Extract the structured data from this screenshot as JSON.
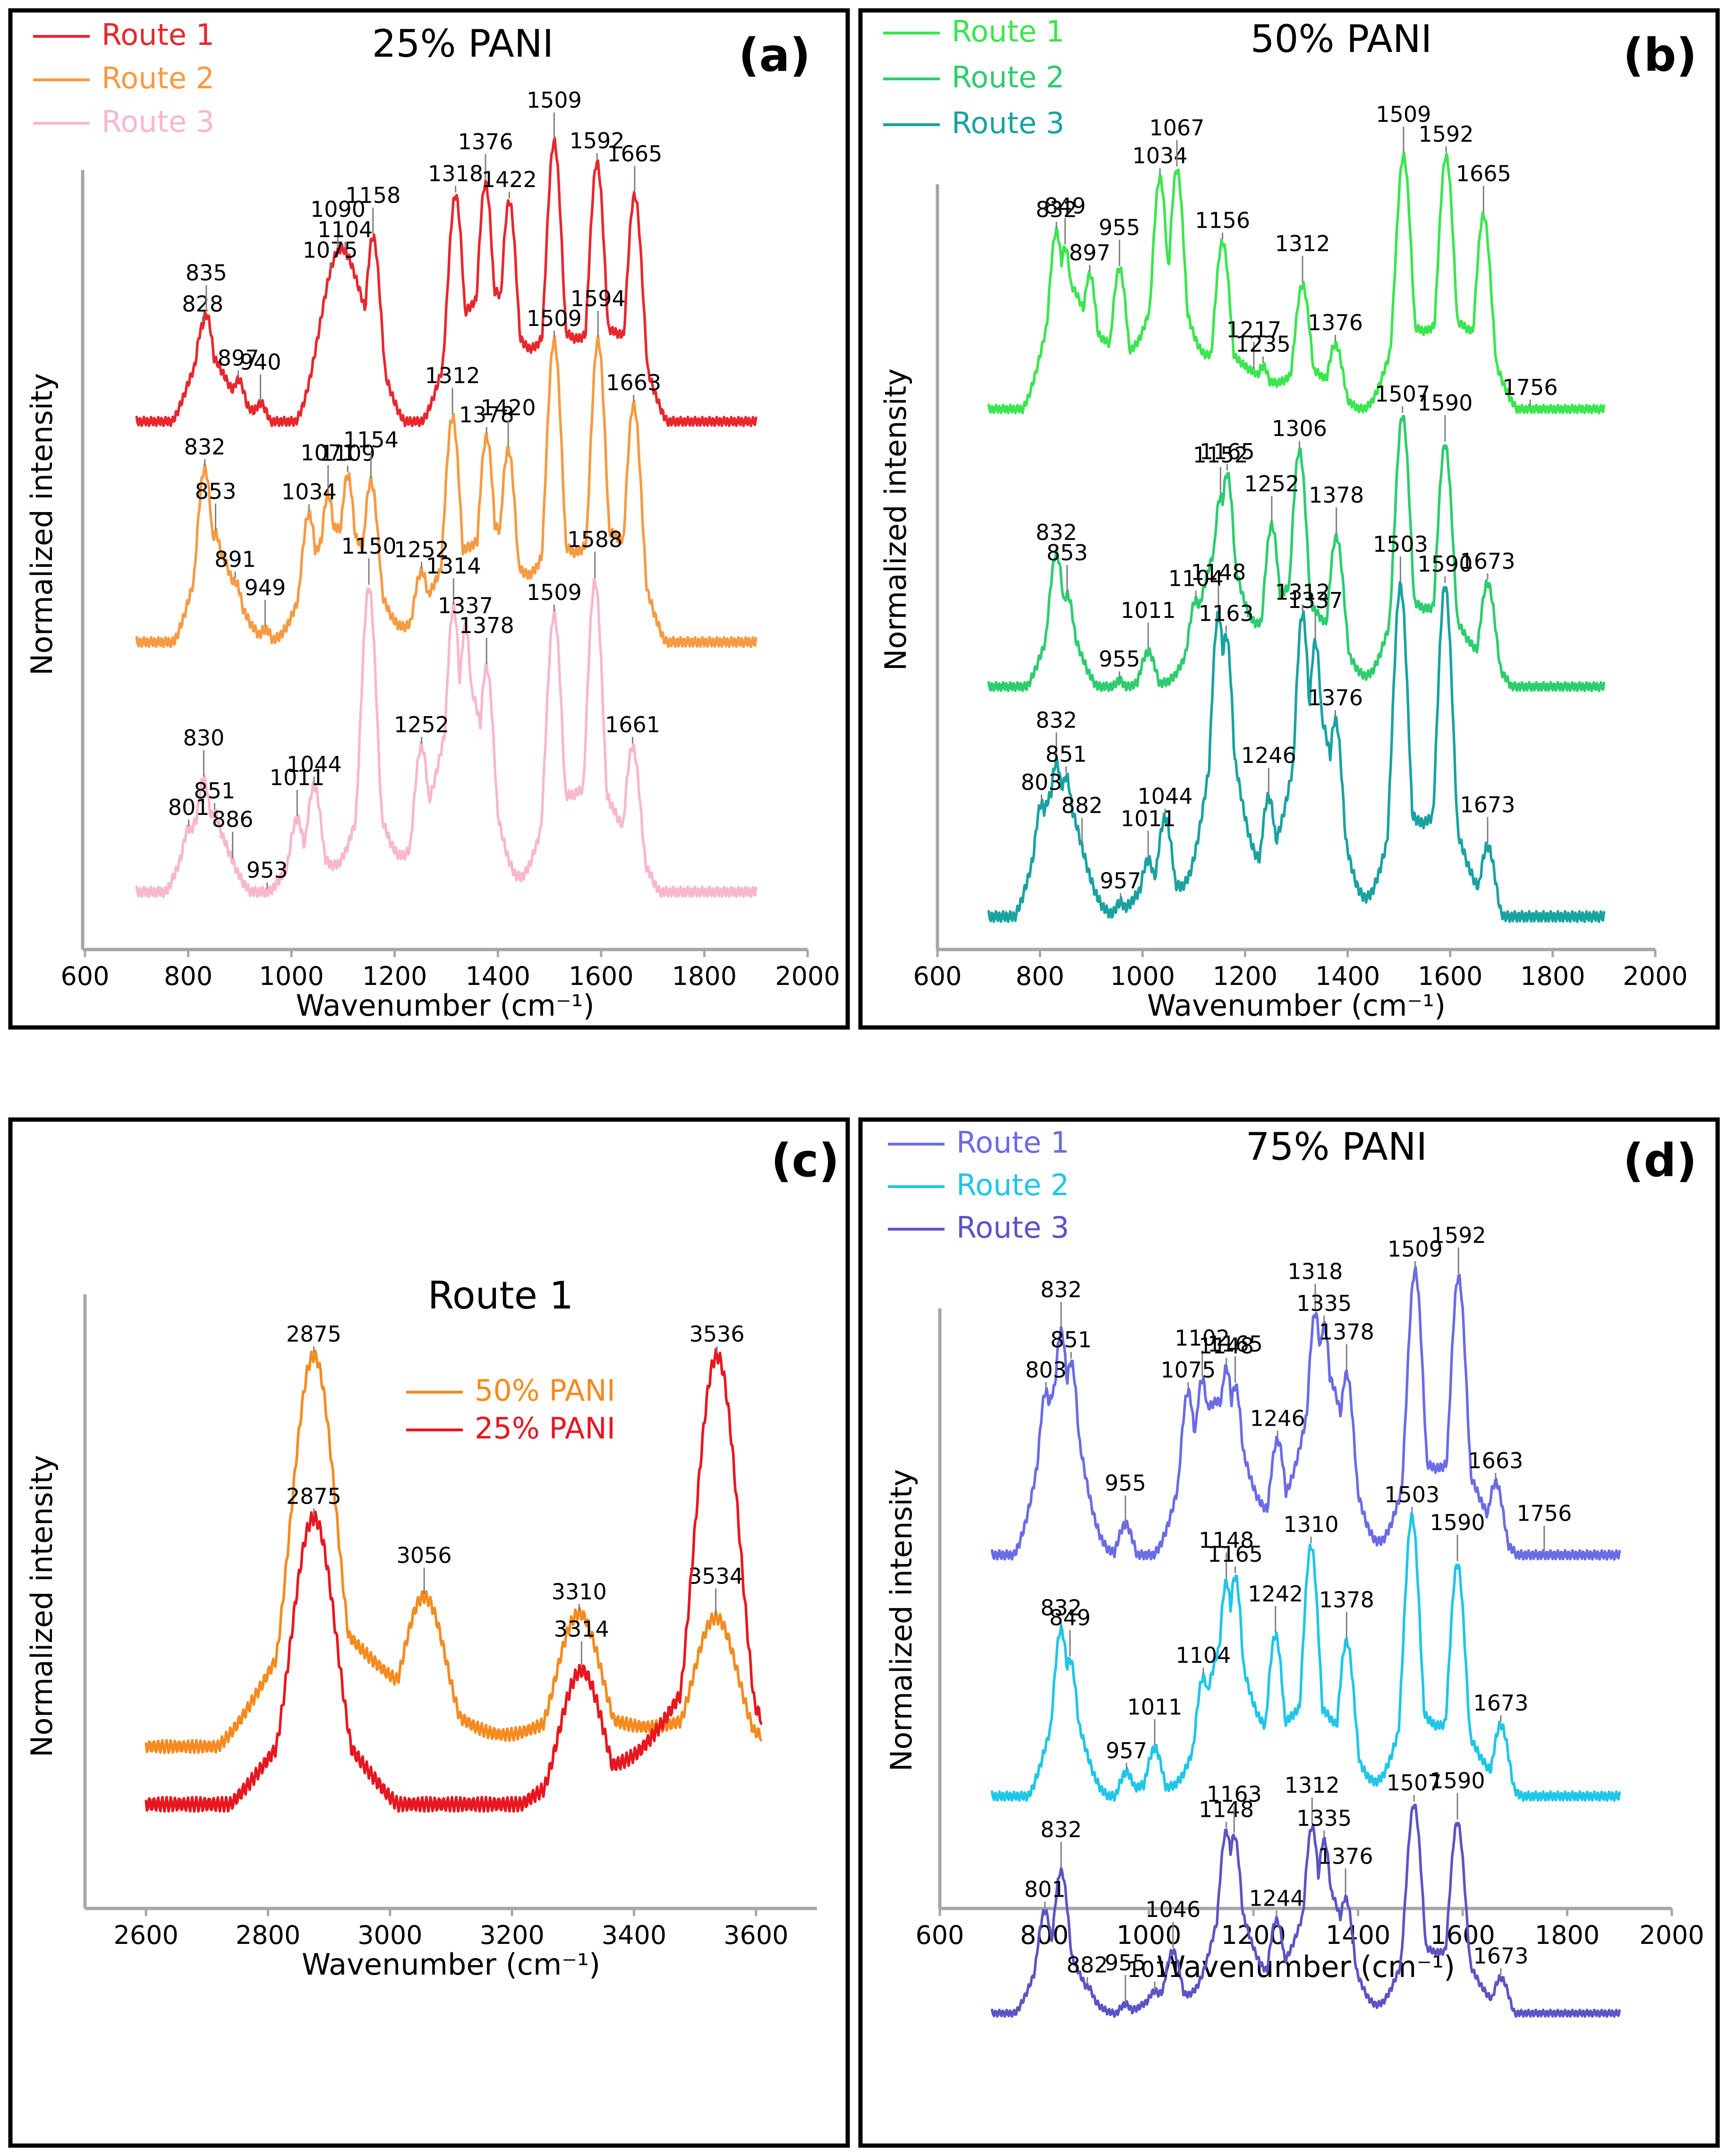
{
  "chart_data": [
    {
      "panel": "a",
      "type": "line",
      "title": "25% PANI",
      "xlabel": "Wavenumber (cm⁻¹)",
      "ylabel": "Normalized intensity",
      "xlim": [
        600,
        2000
      ],
      "xticks": [
        "600",
        "800",
        "1000",
        "1200",
        "1400",
        "1600",
        "1800",
        "2000"
      ],
      "legend_position": "top-left",
      "series": [
        {
          "name": "Route 1",
          "color": "#e8272d",
          "offset": 0.66,
          "scale": 0.28,
          "peaks": [
            [
              828,
              0.38
            ],
            [
              835,
              0.42
            ],
            [
              897,
              0.2
            ],
            [
              940,
              0.12
            ],
            [
              1075,
              0.55
            ],
            [
              1090,
              0.62
            ],
            [
              1104,
              0.63
            ],
            [
              1158,
              0.68
            ],
            [
              1318,
              0.82
            ],
            [
              1376,
              0.86
            ],
            [
              1422,
              0.8
            ],
            [
              1509,
              1.0
            ],
            [
              1592,
              0.93
            ],
            [
              1665,
              0.82
            ]
          ],
          "labels": [
            "828",
            "835",
            "897",
            "940",
            "1075",
            "1090",
            "1104",
            "1158",
            "1318",
            "1376",
            "1422",
            "1509",
            "1592",
            "1665"
          ]
        },
        {
          "name": "Route 2",
          "color": "#f79a42",
          "offset": 0.34,
          "scale": 0.3,
          "peaks": [
            [
              832,
              0.6
            ],
            [
              853,
              0.4
            ],
            [
              891,
              0.25
            ],
            [
              949,
              0.1
            ],
            [
              1034,
              0.46
            ],
            [
              1071,
              0.52
            ],
            [
              1109,
              0.58
            ],
            [
              1154,
              0.56
            ],
            [
              1252,
              0.28
            ],
            [
              1312,
              0.76
            ],
            [
              1378,
              0.7
            ],
            [
              1420,
              0.66
            ],
            [
              1509,
              1.0
            ],
            [
              1594,
              1.0
            ],
            [
              1663,
              0.8
            ]
          ],
          "labels": [
            "832",
            "853",
            "891",
            "949",
            "1034",
            "1071",
            "1109",
            "1154",
            "1252",
            "1312",
            "1378",
            "1420",
            "1509",
            "1594",
            "1663"
          ]
        },
        {
          "name": "Route 3",
          "color": "#f8b7cf",
          "offset": 0.02,
          "scale": 0.46,
          "peaks": [
            [
              801,
              0.25
            ],
            [
              830,
              0.4
            ],
            [
              851,
              0.3
            ],
            [
              886,
              0.12
            ],
            [
              953,
              0.05
            ],
            [
              1011,
              0.28
            ],
            [
              1044,
              0.38
            ],
            [
              1150,
              0.98
            ],
            [
              1252,
              0.5
            ],
            [
              1314,
              0.92
            ],
            [
              1337,
              0.86
            ],
            [
              1378,
              0.74
            ],
            [
              1509,
              0.9
            ],
            [
              1588,
              1.0
            ],
            [
              1661,
              0.5
            ]
          ],
          "labels": [
            "801",
            "830",
            "851",
            "886",
            "953",
            "1011",
            "1044",
            "1150",
            "1252",
            "1314",
            "1337",
            "1378",
            "1509",
            "1588",
            "1661"
          ]
        }
      ]
    },
    {
      "panel": "b",
      "type": "line",
      "title": "50% PANI",
      "xlabel": "Wavenumber (cm⁻¹)",
      "ylabel": "Normalized intensity",
      "xlim": [
        600,
        2000
      ],
      "xticks": [
        "600",
        "800",
        "1000",
        "1200",
        "1400",
        "1600",
        "1800",
        "2000"
      ],
      "legend_position": "top-left",
      "series": [
        {
          "name": "Route 1",
          "color": "#3ae64e",
          "offset": 0.66,
          "scale": 0.3,
          "peaks": [
            [
              832,
              0.72
            ],
            [
              849,
              0.66
            ],
            [
              897,
              0.56
            ],
            [
              955,
              0.58
            ],
            [
              1034,
              0.92
            ],
            [
              1067,
              0.95
            ],
            [
              1156,
              0.68
            ],
            [
              1217,
              0.2
            ],
            [
              1235,
              0.22
            ],
            [
              1312,
              0.52
            ],
            [
              1376,
              0.3
            ],
            [
              1509,
              1.0
            ],
            [
              1592,
              1.0
            ],
            [
              1665,
              0.78
            ],
            [
              1756,
              0.04
            ]
          ],
          "labels": [
            "832",
            "849",
            "897",
            "955",
            "1034",
            "1067",
            "1156",
            "1217",
            "1235",
            "1312",
            "1376",
            "1509",
            "1592",
            "1665",
            "1756"
          ]
        },
        {
          "name": "Route 2",
          "color": "#2dcd6e",
          "offset": 0.34,
          "scale": 0.3,
          "peaks": [
            [
              832,
              0.52
            ],
            [
              853,
              0.38
            ],
            [
              955,
              0.08
            ],
            [
              1011,
              0.18
            ],
            [
              1104,
              0.36
            ],
            [
              1152,
              0.72
            ],
            [
              1165,
              0.8
            ],
            [
              1252,
              0.62
            ],
            [
              1306,
              0.88
            ],
            [
              1378,
              0.58
            ],
            [
              1507,
              1.0
            ],
            [
              1590,
              0.9
            ],
            [
              1673,
              0.42
            ]
          ],
          "labels": [
            "832",
            "853",
            "955",
            "1011",
            "1104",
            "1152",
            "1165",
            "1252",
            "1306",
            "1378",
            "1507",
            "1590",
            "1673"
          ]
        },
        {
          "name": "Route 3",
          "color": "#19a3a0",
          "offset": 0.02,
          "scale": 0.3,
          "peaks": [
            [
              803,
              0.38
            ],
            [
              832,
              0.5
            ],
            [
              851,
              0.46
            ],
            [
              882,
              0.2
            ],
            [
              957,
              0.1
            ],
            [
              1011,
              0.22
            ],
            [
              1044,
              0.34
            ],
            [
              1148,
              0.92
            ],
            [
              1163,
              0.86
            ],
            [
              1246,
              0.4
            ],
            [
              1312,
              0.92
            ],
            [
              1337,
              0.84
            ],
            [
              1376,
              0.62
            ],
            [
              1503,
              1.0
            ],
            [
              1590,
              1.0
            ],
            [
              1673,
              0.26
            ]
          ],
          "labels": [
            "803",
            "832",
            "851",
            "882",
            "957",
            "1011",
            "1044",
            "1148",
            "1163",
            "1246",
            "1312",
            "1337",
            "1376",
            "1503",
            "1590",
            "1673"
          ]
        }
      ]
    },
    {
      "panel": "c",
      "type": "line",
      "title": "Route 1",
      "xlabel": "Wavenumber (cm⁻¹)",
      "ylabel": "Normalized intensity",
      "xlim": [
        2500,
        3700
      ],
      "xticks": [
        "2600",
        "2800",
        "3000",
        "3200",
        "3400",
        "3600"
      ],
      "legend_position": "top-center",
      "series": [
        {
          "name": "50% PANI",
          "color": "#f58a1f",
          "offset": 0.26,
          "scale": 0.72,
          "peaks": [
            [
              2875,
              1.0
            ],
            [
              3056,
              0.42
            ],
            [
              3310,
              0.38
            ],
            [
              3534,
              0.37
            ]
          ],
          "labels": [
            "2875",
            "3056",
            "3310",
            "3534"
          ]
        },
        {
          "name": "25% PANI",
          "color": "#e8161f",
          "offset": 0.16,
          "scale": 0.84,
          "peaks": [
            [
              2875,
              0.66
            ],
            [
              3314,
              0.34
            ],
            [
              3536,
              1.0
            ]
          ],
          "labels": [
            "2875",
            "3314",
            "3536"
          ]
        }
      ]
    },
    {
      "panel": "d",
      "type": "line",
      "title": "75% PANI",
      "xlabel": "Wavenumber (cm⁻¹)",
      "ylabel": "Normalized intensity",
      "xlim": [
        600,
        2000
      ],
      "xticks": [
        "600",
        "800",
        "1000",
        "1200",
        "1400",
        "1600",
        "1800",
        "2000"
      ],
      "legend_position": "top-left",
      "series": [
        {
          "name": "Route 1",
          "color": "#6b6be6",
          "offset": 0.66,
          "scale": 0.3,
          "peaks": [
            [
              803,
              0.6
            ],
            [
              832,
              0.8
            ],
            [
              851,
              0.7
            ],
            [
              955,
              0.16
            ],
            [
              1075,
              0.6
            ],
            [
              1102,
              0.64
            ],
            [
              1148,
              0.68
            ],
            [
              1165,
              0.62
            ],
            [
              1246,
              0.44
            ],
            [
              1318,
              0.86
            ],
            [
              1335,
              0.82
            ],
            [
              1378,
              0.66
            ],
            [
              1509,
              1.0
            ],
            [
              1592,
              0.98
            ],
            [
              1663,
              0.3
            ],
            [
              1756,
              0.04
            ]
          ],
          "labels": [
            "803",
            "832",
            "851",
            "955",
            "1075",
            "1102",
            "1148",
            "1165",
            "1246",
            "1318",
            "1335",
            "1378",
            "1509",
            "1592",
            "1663",
            "1756"
          ]
        },
        {
          "name": "Route 2",
          "color": "#1fc6e8",
          "offset": 0.34,
          "scale": 0.3,
          "peaks": [
            [
              832,
              0.62
            ],
            [
              849,
              0.52
            ],
            [
              957,
              0.14
            ],
            [
              1011,
              0.22
            ],
            [
              1104,
              0.46
            ],
            [
              1148,
              0.78
            ],
            [
              1165,
              0.8
            ],
            [
              1242,
              0.6
            ],
            [
              1310,
              0.9
            ],
            [
              1378,
              0.58
            ],
            [
              1503,
              1.0
            ],
            [
              1590,
              0.84
            ],
            [
              1673,
              0.3
            ]
          ],
          "labels": [
            "832",
            "849",
            "957",
            "1011",
            "1104",
            "1148",
            "1165",
            "1242",
            "1310",
            "1378",
            "1503",
            "1590",
            "1673"
          ]
        },
        {
          "name": "Route 3",
          "color": "#5b54c4",
          "offset": 0.02,
          "scale": 0.3,
          "peaks": [
            [
              801,
              0.52
            ],
            [
              832,
              0.7
            ],
            [
              882,
              0.18
            ],
            [
              955,
              0.1
            ],
            [
              1011,
              0.16
            ],
            [
              1046,
              0.34
            ],
            [
              1148,
              0.88
            ],
            [
              1163,
              0.86
            ],
            [
              1244,
              0.48
            ],
            [
              1312,
              0.9
            ],
            [
              1335,
              0.84
            ],
            [
              1376,
              0.58
            ],
            [
              1507,
              1.0
            ],
            [
              1590,
              0.92
            ],
            [
              1673,
              0.22
            ]
          ],
          "labels": [
            "801",
            "832",
            "882",
            "955",
            "1011",
            "1046",
            "1148",
            "1163",
            "1244",
            "1312",
            "1335",
            "1376",
            "1507",
            "1590",
            "1673"
          ]
        }
      ]
    }
  ]
}
